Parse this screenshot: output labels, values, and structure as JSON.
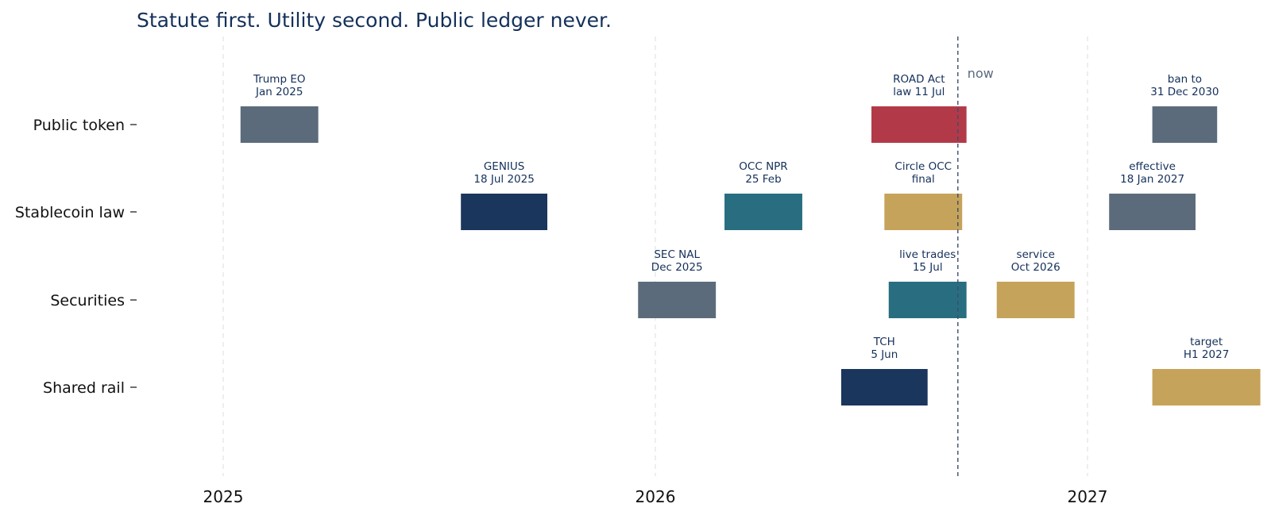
{
  "chart_data": {
    "type": "timeline",
    "title": "Statute first. Utility second. Public ledger never.",
    "categories": [
      "Public token",
      "Stablecoin law",
      "Securities",
      "Shared rail"
    ],
    "x_ticks": [
      {
        "label": "2025",
        "value": 2025.0
      },
      {
        "label": "2026",
        "value": 2026.0
      },
      {
        "label": "2027",
        "value": 2027.0
      }
    ],
    "xlim": [
      2024.8,
      2027.4
    ],
    "grid": "vertical dashed at year ticks",
    "now": {
      "label": "now",
      "value": 2026.7
    },
    "events": [
      {
        "category": "Public token",
        "label_lines": [
          "Trump EO",
          "Jan 2025"
        ],
        "start": 2025.04,
        "end": 2025.22,
        "color": "#5b6b7b"
      },
      {
        "category": "Public token",
        "label_lines": [
          "ROAD Act",
          "law 11 Jul"
        ],
        "start": 2026.5,
        "end": 2026.72,
        "color": "#b23a48"
      },
      {
        "category": "Public token",
        "label_lines": [
          "ban to",
          "31 Dec 2030"
        ],
        "start": 2027.15,
        "end": 2027.3,
        "color": "#5b6b7b"
      },
      {
        "category": "Stablecoin law",
        "label_lines": [
          "GENIUS",
          "18 Jul 2025"
        ],
        "start": 2025.55,
        "end": 2025.75,
        "color": "#1b365d"
      },
      {
        "category": "Stablecoin law",
        "label_lines": [
          "OCC NPR",
          "25 Feb"
        ],
        "start": 2026.16,
        "end": 2026.34,
        "color": "#286e80"
      },
      {
        "category": "Stablecoin law",
        "label_lines": [
          "Circle OCC",
          "final"
        ],
        "start": 2026.53,
        "end": 2026.71,
        "color": "#c6a35a"
      },
      {
        "category": "Stablecoin law",
        "label_lines": [
          "effective",
          "18 Jan 2027"
        ],
        "start": 2027.05,
        "end": 2027.25,
        "color": "#5b6b7b"
      },
      {
        "category": "Securities",
        "label_lines": [
          "SEC NAL",
          "Dec 2025"
        ],
        "start": 2025.96,
        "end": 2026.14,
        "color": "#5b6b7b"
      },
      {
        "category": "Securities",
        "label_lines": [
          "live trades",
          "15 Jul"
        ],
        "start": 2026.54,
        "end": 2026.72,
        "color": "#286e80"
      },
      {
        "category": "Securities",
        "label_lines": [
          "service",
          "Oct 2026"
        ],
        "start": 2026.79,
        "end": 2026.97,
        "color": "#c6a35a"
      },
      {
        "category": "Shared rail",
        "label_lines": [
          "TCH",
          "5 Jun"
        ],
        "start": 2026.43,
        "end": 2026.63,
        "color": "#1b365d"
      },
      {
        "category": "Shared rail",
        "label_lines": [
          "target",
          "H1 2027"
        ],
        "start": 2027.15,
        "end": 2027.4,
        "color": "#c6a35a"
      }
    ]
  }
}
